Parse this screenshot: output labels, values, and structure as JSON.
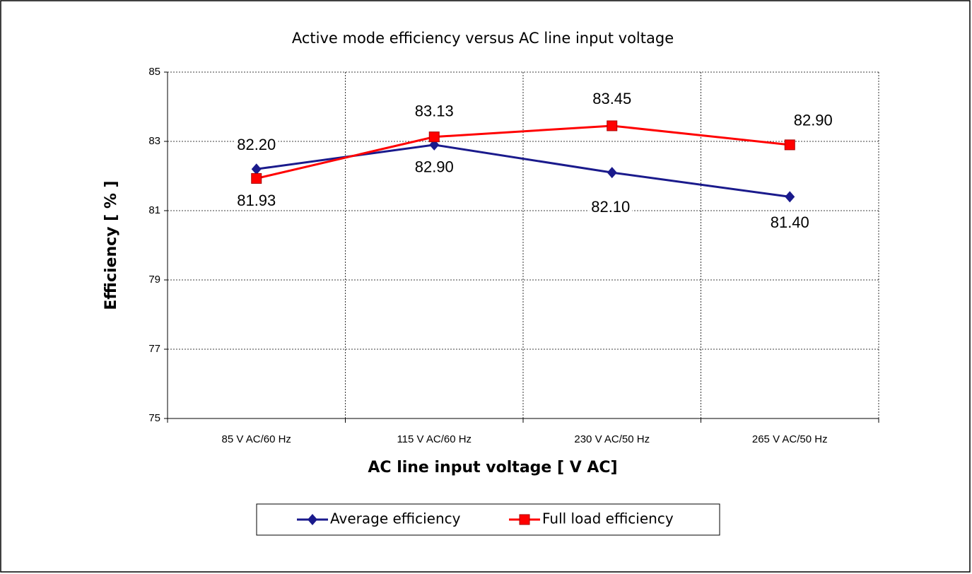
{
  "chart_data": {
    "type": "line",
    "title": "Active mode efficiency versus AC line input voltage",
    "x_label": "AC line input voltage [ V AC]",
    "y_label": "Efficiency [ % ]",
    "categories": [
      "85 V AC/60 Hz",
      "115 V AC/60 Hz",
      "230 V AC/50 Hz",
      "265 V AC/50 Hz"
    ],
    "series": [
      {
        "name": "Average efficiency",
        "color": "#1a1a8c",
        "marker": "diamond",
        "values": [
          82.2,
          82.9,
          82.1,
          81.4
        ],
        "value_labels": [
          "82.20",
          "82.90",
          "82.10",
          "81.40"
        ]
      },
      {
        "name": "Full load efficiency",
        "color": "#ff0000",
        "marker": "square",
        "values": [
          81.93,
          83.13,
          83.45,
          82.9
        ],
        "value_labels": [
          "81.93",
          "83.13",
          "83.45",
          "82.90"
        ]
      }
    ],
    "ylim": [
      75,
      85
    ],
    "yticks": [
      75,
      77,
      79,
      81,
      83,
      85
    ],
    "grid": true,
    "legend": "bottom"
  }
}
